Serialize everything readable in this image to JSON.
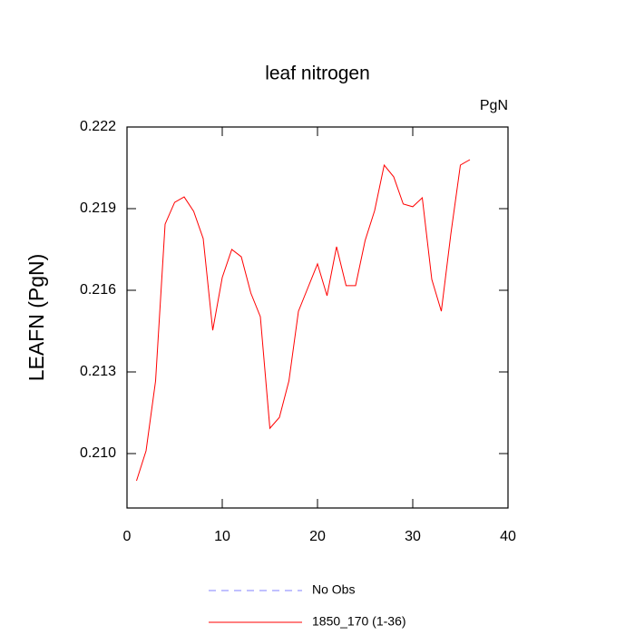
{
  "chart_data": {
    "type": "line",
    "title": "leaf nitrogen",
    "units": "PgN",
    "y_label": "LEAFN  (PgN)",
    "x": [
      1,
      2,
      3,
      4,
      5,
      6,
      7,
      8,
      9,
      10,
      11,
      12,
      13,
      14,
      15,
      16,
      17,
      18,
      19,
      20,
      21,
      22,
      23,
      24,
      25,
      26,
      27,
      28,
      29,
      30,
      31,
      32,
      33,
      34,
      35,
      36
    ],
    "series": [
      {
        "name": "No Obs",
        "color": "#8080ff",
        "dash": true,
        "values": [
          null,
          null,
          null,
          null,
          null,
          null,
          null,
          null,
          null,
          null,
          null,
          null,
          null,
          null,
          null,
          null,
          null,
          null,
          null,
          null,
          null,
          null,
          null,
          null,
          null,
          null,
          null,
          null,
          null,
          null,
          null,
          null,
          null,
          null,
          null,
          null
        ]
      },
      {
        "name": "1850_170 (1-36)",
        "color": "#ff0000",
        "dash": false,
        "values": [
          0.209,
          0.2101,
          0.21267,
          0.21843,
          0.21923,
          0.21943,
          0.2189,
          0.2179,
          0.21453,
          0.21647,
          0.2175,
          0.21723,
          0.2159,
          0.21503,
          0.21093,
          0.21133,
          0.21267,
          0.21523,
          0.2161,
          0.21697,
          0.2158,
          0.2176,
          0.21617,
          0.21617,
          0.21783,
          0.21893,
          0.2206,
          0.22017,
          0.21917,
          0.21907,
          0.2194,
          0.2164,
          0.21523,
          0.21807,
          0.2206,
          0.2208
        ]
      }
    ],
    "xlim": [
      0,
      40
    ],
    "xticks": [
      0,
      10,
      20,
      30,
      40
    ],
    "ylim": [
      0.208,
      0.222
    ],
    "yticks": [
      {
        "value": 0.21,
        "label": "0.210"
      },
      0.213,
      0.216,
      0.219,
      0.222
    ],
    "grid": false
  }
}
